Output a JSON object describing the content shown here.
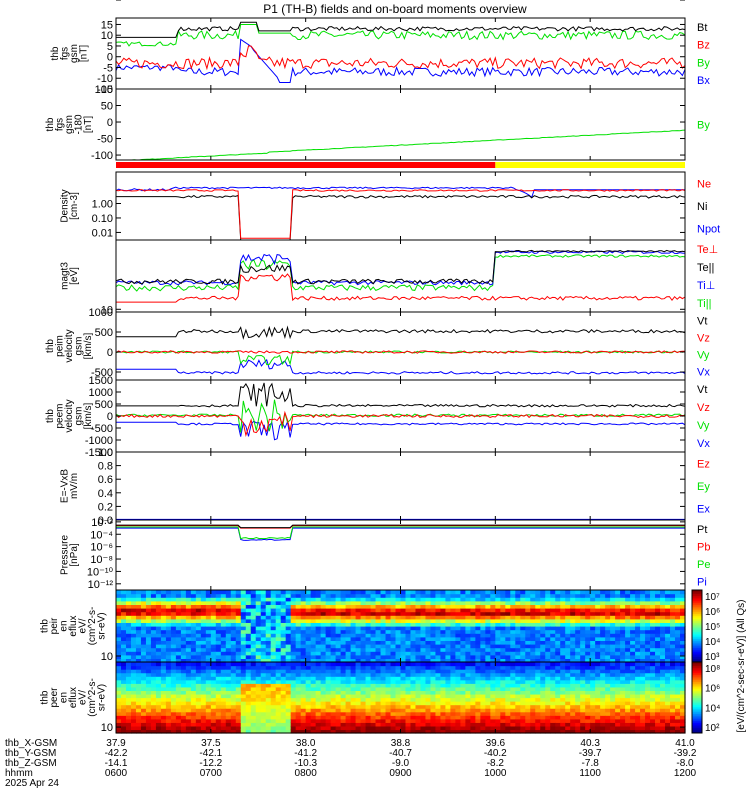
{
  "title": "P1 (TH-B) fields and on-board moments overview",
  "colors": {
    "black": "#000000",
    "red": "#ff0000",
    "green": "#00e000",
    "blue": "#0000ff",
    "yellow": "#ffff00"
  },
  "chart_data": [
    {
      "type": "line",
      "id": "fgs",
      "ylabel": [
        "thb",
        "fgs",
        "gsm",
        "[nT]"
      ],
      "ylim": [
        -15,
        18
      ],
      "yticks": [
        -15,
        -10,
        -5,
        0,
        5,
        10,
        15
      ],
      "legend": [
        {
          "name": "Bt",
          "color": "#000000"
        },
        {
          "name": "Bz",
          "color": "#ff0000"
        },
        {
          "name": "By",
          "color": "#00e000"
        },
        {
          "name": "Bx",
          "color": "#0000ff"
        }
      ]
    },
    {
      "type": "line",
      "id": "fgs_by",
      "ylabel": [
        "thb",
        "fgs",
        "gsm",
        "-180",
        "[nT]"
      ],
      "ylim": [
        -115,
        100
      ],
      "yticks": [
        -100,
        -50,
        0,
        50,
        100
      ],
      "legend": [
        {
          "name": "By",
          "color": "#00e000"
        }
      ]
    },
    {
      "type": "line",
      "id": "density",
      "ylabel": [
        "Density",
        "[cm-3]"
      ],
      "log": true,
      "ylim": [
        0.003,
        150
      ],
      "yticks": [
        "0.01",
        "0.10",
        "1.00",
        "10.00",
        "100.00"
      ],
      "legend": [
        {
          "name": "Ne",
          "color": "#ff0000"
        },
        {
          "name": "Ni",
          "color": "#000000"
        },
        {
          "name": "Npot",
          "color": "#0000ff"
        }
      ]
    },
    {
      "type": "line",
      "id": "temp",
      "ylabel": [
        "magt3",
        "[eV]"
      ],
      "log": true,
      "ylim": [
        8,
        3000
      ],
      "yticks": [
        "10",
        "100",
        "1000"
      ],
      "legend": [
        {
          "name": "Te⊥",
          "color": "#ff0000"
        },
        {
          "name": "Te||",
          "color": "#000000"
        },
        {
          "name": "Ti⊥",
          "color": "#0000ff"
        },
        {
          "name": "Ti||",
          "color": "#00e000"
        }
      ]
    },
    {
      "type": "line",
      "id": "peim",
      "ylabel": [
        "thb",
        "peim",
        "velocity",
        "gsm",
        "[km/s]"
      ],
      "ylim": [
        -700,
        1000
      ],
      "yticks": [
        -500,
        0,
        500,
        1000
      ],
      "legend": [
        {
          "name": "Vt",
          "color": "#000000"
        },
        {
          "name": "Vz",
          "color": "#ff0000"
        },
        {
          "name": "Vy",
          "color": "#00e000"
        },
        {
          "name": "Vx",
          "color": "#0000ff"
        }
      ]
    },
    {
      "type": "line",
      "id": "peem",
      "ylabel": [
        "thb",
        "peem",
        "velocity",
        "gsm",
        "[km/s]"
      ],
      "ylim": [
        -1500,
        1500
      ],
      "yticks": [
        -1500,
        -1000,
        -500,
        0,
        500,
        1000,
        1500
      ],
      "legend": [
        {
          "name": "Vt",
          "color": "#000000"
        },
        {
          "name": "Vz",
          "color": "#ff0000"
        },
        {
          "name": "Vy",
          "color": "#00e000"
        },
        {
          "name": "Vx",
          "color": "#0000ff"
        }
      ]
    },
    {
      "type": "line",
      "id": "efield",
      "ylabel": [
        "E=-VxB",
        "mV/m"
      ],
      "ylim": [
        0,
        1.0
      ],
      "yticks": [
        "0.0",
        "0.2",
        "0.4",
        "0.6",
        "0.8",
        "1.0"
      ],
      "legend": [
        {
          "name": "Ez",
          "color": "#ff0000"
        },
        {
          "name": "Ey",
          "color": "#00e000"
        },
        {
          "name": "Ex",
          "color": "#0000ff"
        }
      ]
    },
    {
      "type": "line",
      "id": "pressure",
      "ylabel": [
        "Pressure",
        "[nPa]"
      ],
      "log": true,
      "ylim": [
        1e-13,
        0.02
      ],
      "yticks": [
        "10⁻¹²",
        "10⁻¹⁰",
        "10⁻⁸",
        "10⁻⁶",
        "10⁻⁴",
        "10⁻²"
      ],
      "legend": [
        {
          "name": "Pt",
          "color": "#000000"
        },
        {
          "name": "Pb",
          "color": "#ff0000"
        },
        {
          "name": "Pe",
          "color": "#00e000"
        },
        {
          "name": "Pi",
          "color": "#0000ff"
        }
      ]
    },
    {
      "type": "heatmap",
      "id": "peir",
      "ylabel": [
        "thb",
        "peir",
        "en",
        "eflux",
        "eV/",
        "(cm^2-s-",
        "sr-eV)"
      ],
      "log": true,
      "ylim": [
        5,
        20000
      ],
      "yticks": [
        "10",
        "100",
        "1000",
        "10000"
      ],
      "colorbar_ticks": [
        "10⁷",
        "10⁶",
        "10⁵",
        "10⁴",
        "10³"
      ]
    },
    {
      "type": "heatmap",
      "id": "peer",
      "ylabel": [
        "thb",
        "peer",
        "en",
        "eflux",
        "eV/",
        "(cm^2-s-",
        "sr-eV)"
      ],
      "log": true,
      "ylim": [
        5,
        20000
      ],
      "yticks": [
        "10",
        "100",
        "1000",
        "10000"
      ],
      "colorbar_ticks": [
        "10⁸",
        "10⁶",
        "10⁴",
        "10²"
      ]
    }
  ],
  "colorbar_label": "[eV/(cm^2-sec-sr-eV)] (All Qs)",
  "colorbar_label_upper": "(All Qs)",
  "mode_bar": {
    "segments": [
      {
        "color": "#ff0000",
        "from": "0600",
        "to": "1000"
      },
      {
        "color": "#ffff00",
        "from": "1000",
        "to": "1200"
      }
    ]
  },
  "xaxis": {
    "labels": [
      "thb_X-GSM",
      "thb_Y-GSM",
      "thb_Z-GSM",
      "hhmm",
      "2025 Apr 24"
    ],
    "columns": [
      [
        "37.9",
        "-42.2",
        "-14.1",
        "0600"
      ],
      [
        "37.5",
        "-42.1",
        "-12.2",
        "0700"
      ],
      [
        "38.0",
        "-41.2",
        "-10.3",
        "0800"
      ],
      [
        "38.8",
        "-40.7",
        "-9.0",
        "0900"
      ],
      [
        "39.6",
        "-40.2",
        "-8.2",
        "1000"
      ],
      [
        "40.3",
        "-39.7",
        "-7.8",
        "1100"
      ],
      [
        "41.0",
        "-39.2",
        "-8.0",
        "1200"
      ]
    ]
  }
}
